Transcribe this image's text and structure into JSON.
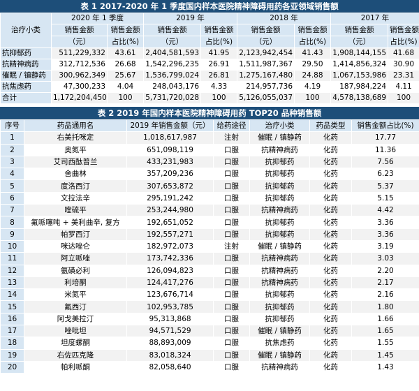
{
  "table1": {
    "title": "表 1    2017-2020 年 1 季度国内样本医院精神障碍用药各亚领域销售额",
    "corner": "治疗小类",
    "periods": [
      "2020 年 1 季度",
      "2019 年",
      "2018 年",
      "2017 年"
    ],
    "amount_label": "销售金额",
    "amount_unit": "（元）",
    "share_label": "销售金额",
    "share_unit": "占比(%)",
    "rows": [
      {
        "name": "抗抑郁药",
        "vals": [
          "511,229,332",
          "43.61",
          "2,404,581,593",
          "41.95",
          "2,123,942,454",
          "41.43",
          "1,908,144,155",
          "41.68"
        ]
      },
      {
        "name": "抗精神病药",
        "vals": [
          "312,712,536",
          "26.68",
          "1,542,296,235",
          "26.91",
          "1,511,987,367",
          "29.50",
          "1,414,856,324",
          "30.90"
        ]
      },
      {
        "name": "催眠 / 镇静药",
        "vals": [
          "300,962,349",
          "25.67",
          "1,536,799,024",
          "26.81",
          "1,275,167,480",
          "24.88",
          "1,067,153,986",
          "23.31"
        ]
      },
      {
        "name": "抗焦虑药",
        "vals": [
          "47,300,233",
          "4.04",
          "248,043,176",
          "4.33",
          "214,957,736",
          "4.19",
          "187,984,224",
          "4.11"
        ]
      },
      {
        "name": "合计",
        "vals": [
          "1,172,204,450",
          "100",
          "5,731,720,028",
          "100",
          "5,126,055,037",
          "100",
          "4,578,138,689",
          "100"
        ]
      }
    ]
  },
  "table2": {
    "title": "表 2    2019 年国内样本医院精神障碍用药 TOP20 品种销售额",
    "headers": [
      "序号",
      "药品通用名",
      "2019 年销售金额（元）",
      "给药途径",
      "治疗小类",
      "药品类型",
      "销售金额占比(%)"
    ],
    "rows": [
      [
        "1",
        "右美托咪定",
        "1,018,617,987",
        "注射",
        "催眠 / 镇静药",
        "化药",
        "17.77"
      ],
      [
        "2",
        "奥氮平",
        "651,098,119",
        "口服",
        "抗精神病药",
        "化药",
        "11.36"
      ],
      [
        "3",
        "艾司西酞普兰",
        "433,231,983",
        "口服",
        "抗抑郁药",
        "化药",
        "7.56"
      ],
      [
        "4",
        "舍曲林",
        "357,209,236",
        "口服",
        "抗抑郁药",
        "化药",
        "6.23"
      ],
      [
        "5",
        "度洛西汀",
        "307,653,872",
        "口服",
        "抗抑郁药",
        "化药",
        "5.37"
      ],
      [
        "6",
        "文拉法辛",
        "295,191,242",
        "口服",
        "抗抑郁药",
        "化药",
        "5.15"
      ],
      [
        "7",
        "喹硫平",
        "253,244,980",
        "口服",
        "抗精神病药",
        "化药",
        "4.42"
      ],
      [
        "8",
        "氟哌噻吨 + 美利曲辛, 复方",
        "192,651,052",
        "口服",
        "抗抑郁药",
        "化药",
        "3.36"
      ],
      [
        "9",
        "帕罗西汀",
        "192,557,271",
        "口服",
        "抗抑郁药",
        "化药",
        "3.36"
      ],
      [
        "10",
        "咪达唑仑",
        "182,972,073",
        "注射",
        "催眠 / 镇静药",
        "化药",
        "3.19"
      ],
      [
        "11",
        "阿立哌唑",
        "173,742,336",
        "口服",
        "抗精神病药",
        "化药",
        "3.03"
      ],
      [
        "12",
        "氨磺必利",
        "126,094,823",
        "口服",
        "抗精神病药",
        "化药",
        "2.20"
      ],
      [
        "13",
        "利培酮",
        "124,417,276",
        "口服",
        "抗精神病药",
        "化药",
        "2.17"
      ],
      [
        "14",
        "米氮平",
        "123,676,714",
        "口服",
        "抗抑郁药",
        "化药",
        "2.16"
      ],
      [
        "15",
        "氟西汀",
        "102,953,785",
        "口服",
        "抗抑郁药",
        "化药",
        "1.80"
      ],
      [
        "16",
        "阿戈美拉汀",
        "95,313,868",
        "口服",
        "抗抑郁药",
        "化药",
        "1.66"
      ],
      [
        "17",
        "唑吡坦",
        "94,571,529",
        "口服",
        "催眠 / 镇静药",
        "化药",
        "1.65"
      ],
      [
        "18",
        "坦度螺酮",
        "88,893,009",
        "口服",
        "抗焦虑药",
        "化药",
        "1.55"
      ],
      [
        "19",
        "右佐匹克隆",
        "83,018,324",
        "口服",
        "催眠 / 镇静药",
        "化药",
        "1.45"
      ],
      [
        "20",
        "帕利哌酮",
        "82,058,640",
        "口服",
        "抗精神病药",
        "化药",
        "1.43"
      ]
    ]
  }
}
